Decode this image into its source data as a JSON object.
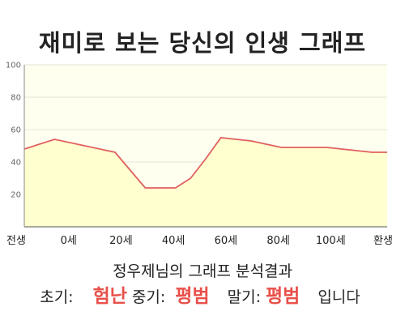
{
  "title": "재미로 보는 당신의 인생 그래프",
  "result": {
    "name_line": "정우제님의 그래프 분석결과",
    "early_label": "초기:",
    "early_value": "험난",
    "mid_label": "중기:",
    "mid_value": "평범",
    "late_label": "말기:",
    "late_value": "평범",
    "suffix": "입니다"
  },
  "colors": {
    "line": "#e06060",
    "fill": "#ffffcc",
    "plot_bg": "#fffff0",
    "highlight": "#e8504a"
  },
  "chart_data": {
    "type": "area",
    "title": "재미로 보는 당신의 인생 그래프",
    "xlabel": "",
    "ylabel": "",
    "ylim": [
      0,
      100
    ],
    "yticks": [
      20,
      40,
      60,
      80,
      100
    ],
    "grid": true,
    "categories": [
      "전생",
      "0세",
      "20세",
      "40세",
      "60세",
      "80세",
      "100세",
      "환생"
    ],
    "x": [
      -10,
      0,
      10,
      20,
      25,
      30,
      35,
      40,
      45,
      50,
      55,
      60,
      65,
      70,
      75,
      80,
      85,
      90,
      95,
      100,
      105,
      110
    ],
    "values": [
      48,
      54,
      50,
      46,
      35,
      24,
      24,
      24,
      30,
      42,
      55,
      54,
      53,
      51,
      49,
      49,
      49,
      49,
      48,
      47,
      46,
      46
    ]
  }
}
